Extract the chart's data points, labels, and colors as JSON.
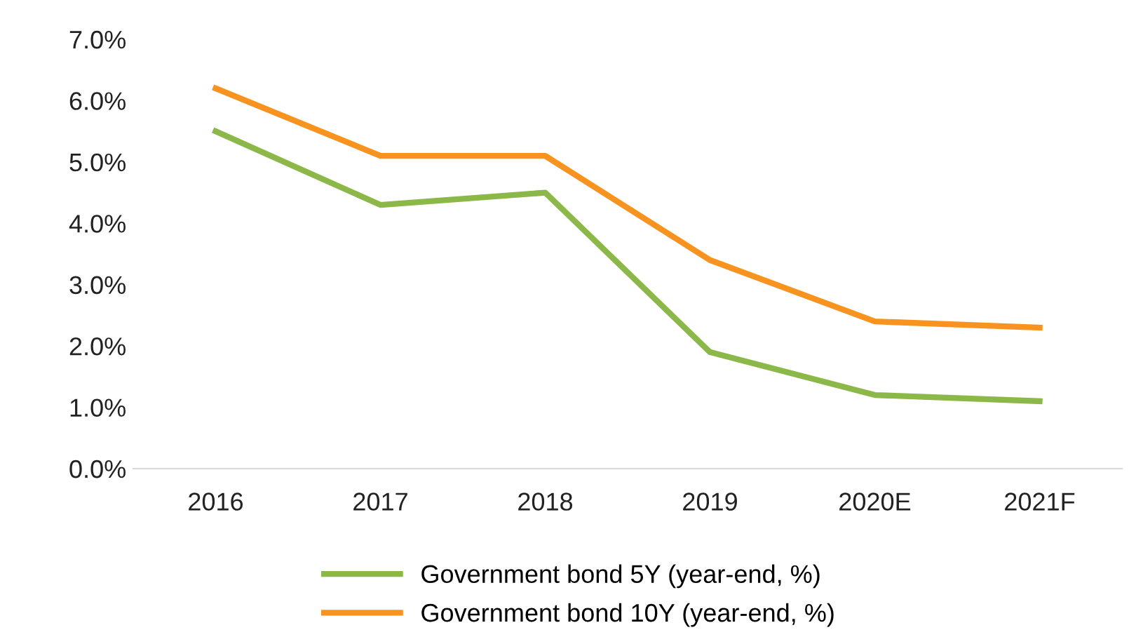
{
  "chart_data": {
    "type": "line",
    "categories": [
      "2016",
      "2017",
      "2018",
      "2019",
      "2020E",
      "2021F"
    ],
    "series": [
      {
        "name": "Government bond 5Y (year-end, %)",
        "color": "#8cb84a",
        "values": [
          5.5,
          4.3,
          4.5,
          1.9,
          1.2,
          1.1
        ]
      },
      {
        "name": "Government bond 10Y (year-end, %)",
        "color": "#f7931e",
        "values": [
          6.2,
          5.1,
          5.1,
          3.4,
          2.4,
          2.3
        ]
      }
    ],
    "ylim": [
      0,
      7
    ],
    "yticks": [
      {
        "value": 0,
        "label": "0.0%"
      },
      {
        "value": 1,
        "label": "1.0%"
      },
      {
        "value": 2,
        "label": "2.0%"
      },
      {
        "value": 3,
        "label": "3.0%"
      },
      {
        "value": 4,
        "label": "4.0%"
      },
      {
        "value": 5,
        "label": "5.0%"
      },
      {
        "value": 6,
        "label": "6.0%"
      },
      {
        "value": 7,
        "label": "7.0%"
      }
    ],
    "grid": false,
    "legend": "bottom",
    "marker": "none",
    "line_style": "solid"
  }
}
